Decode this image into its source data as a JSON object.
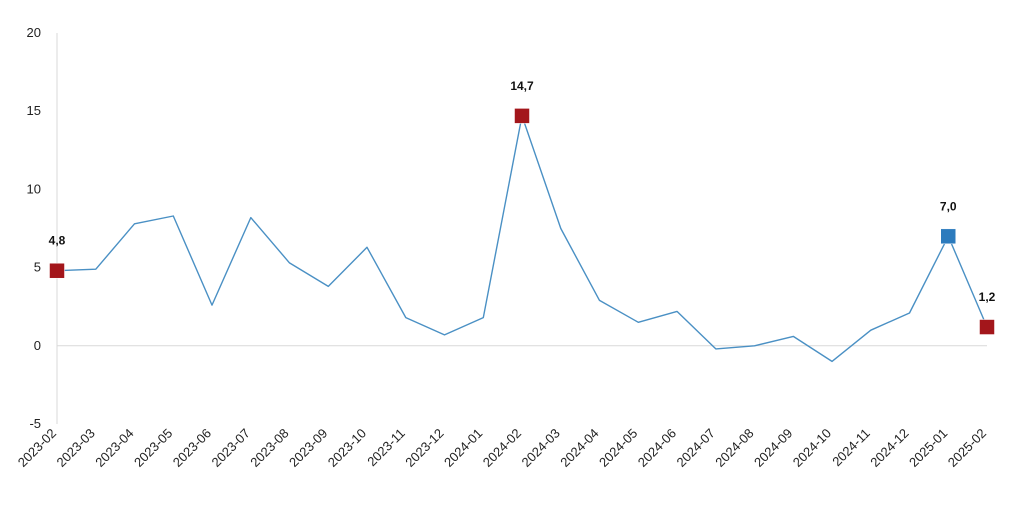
{
  "chart_data": {
    "type": "line",
    "x": [
      "2023-02",
      "2023-03",
      "2023-04",
      "2023-05",
      "2023-06",
      "2023-07",
      "2023-08",
      "2023-09",
      "2023-10",
      "2023-11",
      "2023-12",
      "2024-01",
      "2024-02",
      "2024-03",
      "2024-04",
      "2024-05",
      "2024-06",
      "2024-07",
      "2024-08",
      "2024-09",
      "2024-10",
      "2024-11",
      "2024-12",
      "2025-01",
      "2025-02"
    ],
    "series": [
      {
        "values": [
          4.8,
          4.9,
          7.8,
          8.3,
          2.6,
          8.2,
          5.3,
          3.8,
          6.3,
          1.8,
          0.7,
          1.8,
          14.7,
          7.5,
          2.9,
          1.5,
          2.2,
          -0.2,
          0.0,
          0.6,
          -1.0,
          1.0,
          2.1,
          7.0,
          1.2
        ],
        "color": "#4a90c4"
      }
    ],
    "markers": [
      {
        "index": 0,
        "label": "4,8",
        "color": "#a3161b"
      },
      {
        "index": 12,
        "label": "14,7",
        "color": "#a3161b"
      },
      {
        "index": 23,
        "label": "7,0",
        "color": "#2c7bbd"
      },
      {
        "index": 24,
        "label": "1,2",
        "color": "#a3161b"
      }
    ],
    "yticks": [
      "-5",
      "0",
      "5",
      "10",
      "15",
      "20"
    ],
    "ylim": [
      -5,
      20
    ],
    "grid": false,
    "zero_line_color": "#d9d9d9",
    "axis_color": "#d9d9d9",
    "title": "",
    "xlabel": "",
    "ylabel": ""
  }
}
